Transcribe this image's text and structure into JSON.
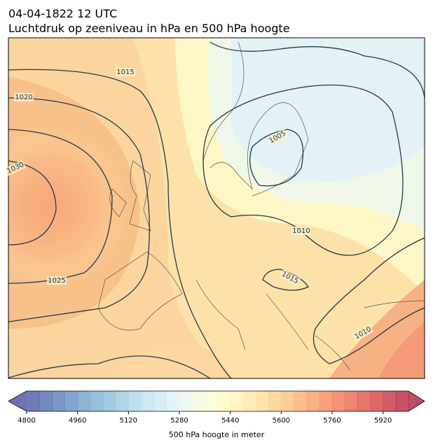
{
  "header": {
    "title": "04-04-1822 12 UTC",
    "subtitle": "Luchtdruk op zeeniveau in hPa en 500 hPa hoogte"
  },
  "map": {
    "isobar_labels": [
      1015,
      1020,
      1030,
      1025,
      1005,
      1010,
      1015,
      1010
    ]
  },
  "colorbar": {
    "label": "500 hPa hoogte in meter",
    "vlim": [
      4800,
      6000
    ],
    "ticks": [
      4800,
      4960,
      5120,
      5280,
      5440,
      5600,
      5760,
      5920
    ],
    "cmap": "RdYlBu_r",
    "extend": "both"
  }
}
